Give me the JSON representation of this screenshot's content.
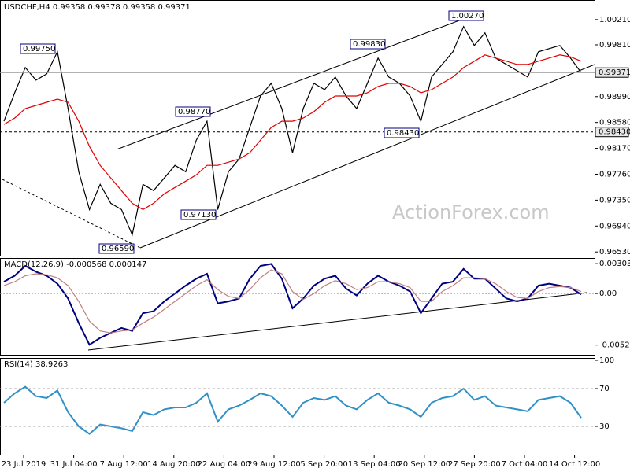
{
  "chart_data": {
    "type": "financial",
    "title": "USDCHF,H4  0.99358 0.99378 0.99358 0.99371",
    "watermark": "ActionForex.com",
    "x_labels": [
      "23 Jul 2019",
      "31 Jul 04:00",
      "7 Aug 12:00",
      "14 Aug 20:00",
      "22 Aug 04:00",
      "29 Aug 12:00",
      "5 Sep 20:00",
      "13 Sep 04:00",
      "20 Sep 12:00",
      "27 Sep 20:00",
      "7 Oct 04:00",
      "14 Oct 12:00"
    ],
    "price": {
      "ylim": [
        0.9647,
        1.0052
      ],
      "yticks": [
        {
          "value": 1.0021,
          "label": "1.00210"
        },
        {
          "value": 0.9981,
          "label": "0.99810"
        },
        {
          "value": 0.9899,
          "label": "0.98990"
        },
        {
          "value": 0.9858,
          "label": "0.98580"
        },
        {
          "value": 0.9817,
          "label": "0.98170"
        },
        {
          "value": 0.9776,
          "label": "0.97760"
        },
        {
          "value": 0.9735,
          "label": "0.97350"
        },
        {
          "value": 0.9694,
          "label": "0.96940"
        },
        {
          "value": 0.9653,
          "label": "0.96530"
        }
      ],
      "current": {
        "value": 0.99371,
        "label": "0.99371"
      },
      "level": {
        "value": 0.9843,
        "label": "0.98430"
      },
      "series": [
        {
          "name": "Close",
          "color": "#000000",
          "values": [
            0.986,
            0.9905,
            0.9945,
            0.9925,
            0.9935,
            0.997,
            0.988,
            0.978,
            0.972,
            0.976,
            0.973,
            0.972,
            0.968,
            0.976,
            0.975,
            0.977,
            0.979,
            0.978,
            0.983,
            0.986,
            0.972,
            0.978,
            0.98,
            0.985,
            0.99,
            0.992,
            0.988,
            0.981,
            0.988,
            0.992,
            0.991,
            0.993,
            0.99,
            0.988,
            0.992,
            0.996,
            0.993,
            0.992,
            0.99,
            0.986,
            0.993,
            0.995,
            0.997,
            1.001,
            0.998,
            1.0,
            0.996,
            0.995,
            0.994,
            0.993,
            0.997,
            0.9975,
            0.998,
            0.996,
            0.9937
          ]
        },
        {
          "name": "MA",
          "color": "#e00000",
          "values": [
            0.9855,
            0.9865,
            0.988,
            0.9885,
            0.989,
            0.9895,
            0.989,
            0.986,
            0.982,
            0.979,
            0.977,
            0.975,
            0.973,
            0.972,
            0.973,
            0.9745,
            0.9755,
            0.9765,
            0.9775,
            0.979,
            0.979,
            0.9795,
            0.98,
            0.981,
            0.983,
            0.985,
            0.986,
            0.986,
            0.9865,
            0.9875,
            0.989,
            0.99,
            0.99,
            0.99,
            0.9905,
            0.9915,
            0.992,
            0.992,
            0.9915,
            0.9905,
            0.991,
            0.992,
            0.993,
            0.9945,
            0.9955,
            0.9965,
            0.996,
            0.9955,
            0.995,
            0.995,
            0.9955,
            0.996,
            0.9965,
            0.9962,
            0.9955
          ]
        }
      ],
      "annotations": [
        "0.99750",
        "0.98770",
        "0.99830",
        "1.00270",
        "0.98430",
        "0.97130",
        "0.96590"
      ]
    },
    "macd": {
      "title": "MACD(12,26,9) -0.000568 0.000147",
      "ylim": [
        -0.0063,
        0.0036
      ],
      "yticks": [
        0.00303,
        {
          "value": 0,
          "label": "0.00"
        },
        -0.005236
      ],
      "series": [
        {
          "name": "MACD",
          "color": "#000080",
          "values": [
            0.0012,
            0.0018,
            0.0028,
            0.0022,
            0.0018,
            0.001,
            -0.0005,
            -0.003,
            -0.0052,
            -0.0045,
            -0.004,
            -0.0035,
            -0.0038,
            -0.002,
            -0.0018,
            -0.0008,
            0.0,
            0.0008,
            0.0015,
            0.002,
            -0.001,
            -0.0008,
            -0.0005,
            0.0015,
            0.0028,
            0.003,
            0.0015,
            -0.0015,
            -0.0005,
            0.0008,
            0.0015,
            0.0018,
            0.0005,
            -0.0002,
            0.001,
            0.0018,
            0.0012,
            0.0008,
            0.0002,
            -0.002,
            -0.0005,
            0.001,
            0.0012,
            0.0025,
            0.0015,
            0.0015,
            0.0005,
            -0.0005,
            -0.0008,
            -0.0005,
            0.0008,
            0.001,
            0.0008,
            0.0006,
            -0.0001
          ]
        },
        {
          "name": "Signal",
          "color": "#c08080",
          "values": [
            0.0008,
            0.0012,
            0.0018,
            0.002,
            0.0019,
            0.0016,
            0.0008,
            -0.0008,
            -0.0028,
            -0.0038,
            -0.004,
            -0.0038,
            -0.0037,
            -0.003,
            -0.0024,
            -0.0016,
            -0.0008,
            0.0,
            0.0008,
            0.0014,
            0.0004,
            -0.0003,
            -0.0005,
            0.0004,
            0.0016,
            0.0024,
            0.002,
            0.0002,
            -0.0006,
            0.0,
            0.0008,
            0.0013,
            0.001,
            0.0004,
            0.0006,
            0.0012,
            0.0012,
            0.001,
            0.0006,
            -0.0008,
            -0.0008,
            0.0002,
            0.0008,
            0.0016,
            0.0016,
            0.0015,
            0.001,
            0.0002,
            -0.0004,
            -0.0005,
            0.0002,
            0.0006,
            0.0007,
            0.0006,
            0.0002
          ]
        }
      ]
    },
    "rsi": {
      "title": "RSI(14) 38.9263",
      "ylim": [
        0,
        100
      ],
      "yticks": [
        100,
        70,
        30
      ],
      "levels": [
        70,
        30
      ],
      "series": [
        {
          "name": "RSI",
          "color": "#3090c8",
          "values": [
            55,
            65,
            72,
            62,
            60,
            68,
            45,
            30,
            22,
            32,
            30,
            28,
            25,
            45,
            42,
            48,
            50,
            50,
            55,
            65,
            35,
            48,
            52,
            58,
            65,
            62,
            52,
            40,
            55,
            60,
            58,
            62,
            52,
            48,
            58,
            65,
            55,
            52,
            48,
            40,
            55,
            60,
            62,
            70,
            58,
            62,
            52,
            50,
            48,
            46,
            58,
            60,
            62,
            55,
            39
          ]
        }
      ]
    }
  }
}
